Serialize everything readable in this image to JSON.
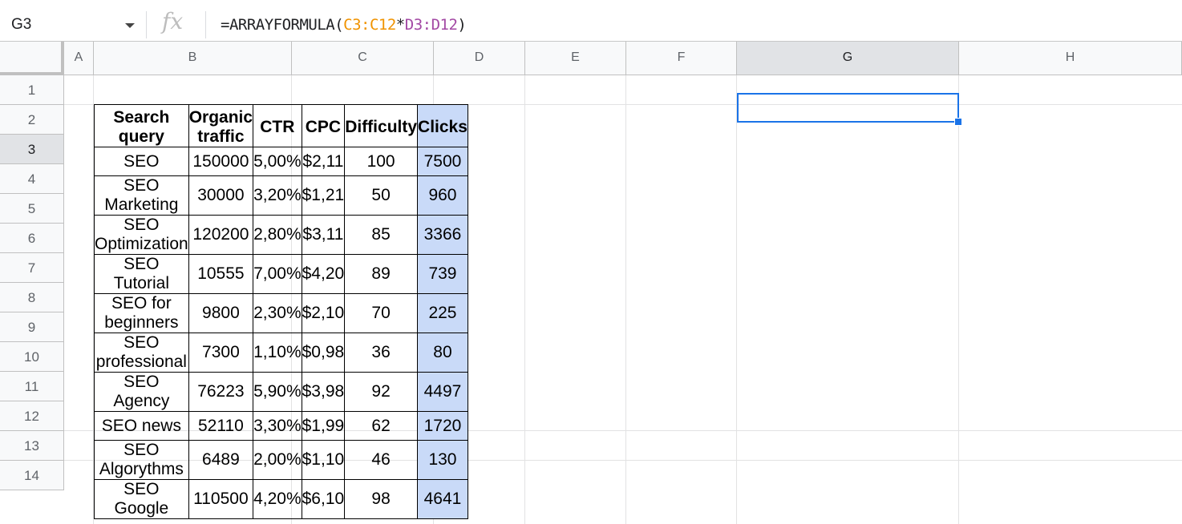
{
  "name_box": "G3",
  "formula": {
    "prefix": "=ARRAYFORMULA(",
    "ref1": "C3:C12",
    "op": "*",
    "ref2": "D3:D12",
    "suffix": ")"
  },
  "columns": [
    "A",
    "B",
    "C",
    "D",
    "E",
    "F",
    "G",
    "H"
  ],
  "rows": [
    "1",
    "2",
    "3",
    "4",
    "5",
    "6",
    "7",
    "8",
    "9",
    "10",
    "11",
    "12",
    "13",
    "14"
  ],
  "headers": [
    "Search query",
    "Organic traffic",
    "CTR",
    "CPC",
    "Difficulty",
    "Clicks"
  ],
  "table": [
    [
      "SEO",
      "150000",
      "5,00%",
      "$2,11",
      "100",
      "7500"
    ],
    [
      "SEO Marketing",
      "30000",
      "3,20%",
      "$1,21",
      "50",
      "960"
    ],
    [
      "SEO Optimization",
      "120200",
      "2,80%",
      "$3,11",
      "85",
      "3366"
    ],
    [
      "SEO Tutorial",
      "10555",
      "7,00%",
      "$4,20",
      "89",
      "739"
    ],
    [
      "SEO for beginners",
      "9800",
      "2,30%",
      "$2,10",
      "70",
      "225"
    ],
    [
      "SEO professional",
      "7300",
      "1,10%",
      "$0,98",
      "36",
      "80"
    ],
    [
      "SEO Agency",
      "76223",
      "5,90%",
      "$3,98",
      "92",
      "4497"
    ],
    [
      "SEO news",
      "52110",
      "3,30%",
      "$1,99",
      "62",
      "1720"
    ],
    [
      "SEO Algorythms",
      "6489",
      "2,00%",
      "$1,10",
      "46",
      "130"
    ],
    [
      "SEO Google",
      "110500",
      "4,20%",
      "$6,10",
      "98",
      "4641"
    ]
  ],
  "colors": {
    "selection_fill": "#c9daf8",
    "cursor": "#1a73e8",
    "ref1": "#f09300",
    "ref2": "#a349a4"
  }
}
